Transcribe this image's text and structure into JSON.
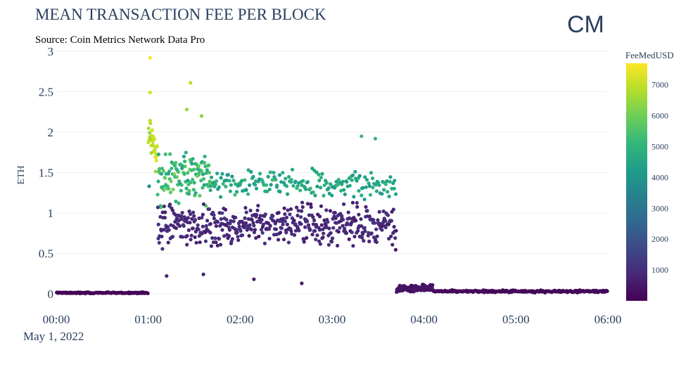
{
  "chart_data": {
    "type": "scatter",
    "title": "MEAN TRANSACTION FEE PER BLOCK",
    "subtitle": "Source: Coin Metrics Network Data Pro",
    "ylabel": "ETH",
    "xlabel": "",
    "x_date_label": "May 1, 2022",
    "x_ticks": [
      "00:00",
      "01:00",
      "02:00",
      "03:00",
      "04:00",
      "05:00",
      "06:00"
    ],
    "x_range_hours": [
      0,
      6
    ],
    "y_ticks": [
      "0",
      "0.5",
      "1",
      "1.5",
      "2",
      "2.5",
      "3"
    ],
    "ylim": [
      0,
      3
    ],
    "grid": true,
    "colorbar": {
      "title": "FeeMedUSD",
      "ticks": [
        "1000",
        "2000",
        "3000",
        "4000",
        "5000",
        "6000",
        "7000"
      ],
      "range": [
        0,
        7700
      ],
      "colorscale": "Viridis"
    },
    "logo_text": "CM",
    "phases": [
      {
        "start": 0.0,
        "end": 1.0,
        "y_base": 0.012,
        "y_spread": 0.012,
        "fee_base": 60,
        "fee_spread": 40,
        "density": 140
      },
      {
        "start": 1.0,
        "end": 1.1,
        "y_base": 1.9,
        "y_spread": 0.45,
        "fee_base": 6900,
        "fee_spread": 700,
        "density": 300
      },
      {
        "start": 1.1,
        "end": 1.7,
        "y_base": 1.45,
        "y_spread": 0.45,
        "fee_base": 5200,
        "fee_spread": 1400,
        "density": 200
      },
      {
        "start": 1.7,
        "end": 3.7,
        "y_base": 1.35,
        "y_spread": 0.25,
        "fee_base": 4600,
        "fee_spread": 900,
        "density": 90
      },
      {
        "start": 1.1,
        "end": 3.7,
        "y_base": 0.85,
        "y_spread": 0.35,
        "fee_base": 900,
        "fee_spread": 500,
        "density": 180
      },
      {
        "start": 3.7,
        "end": 4.1,
        "y_base": 0.07,
        "y_spread": 0.06,
        "fee_base": 400,
        "fee_spread": 200,
        "density": 250
      },
      {
        "start": 4.1,
        "end": 6.0,
        "y_base": 0.03,
        "y_spread": 0.02,
        "fee_base": 150,
        "fee_spread": 100,
        "density": 120
      }
    ],
    "highlight_points": [
      {
        "x": 1.02,
        "y": 2.92,
        "fee": 7600
      },
      {
        "x": 1.02,
        "y": 2.49,
        "fee": 7200
      },
      {
        "x": 1.46,
        "y": 2.61,
        "fee": 6900
      },
      {
        "x": 1.42,
        "y": 2.28,
        "fee": 6500
      },
      {
        "x": 1.58,
        "y": 2.2,
        "fee": 6300
      },
      {
        "x": 3.32,
        "y": 1.95,
        "fee": 5200
      },
      {
        "x": 3.47,
        "y": 1.92,
        "fee": 5100
      },
      {
        "x": 1.01,
        "y": 1.33,
        "fee": 3700
      },
      {
        "x": 1.2,
        "y": 0.22,
        "fee": 700
      },
      {
        "x": 1.6,
        "y": 0.24,
        "fee": 800
      },
      {
        "x": 2.15,
        "y": 0.18,
        "fee": 600
      },
      {
        "x": 2.67,
        "y": 0.13,
        "fee": 500
      }
    ]
  }
}
